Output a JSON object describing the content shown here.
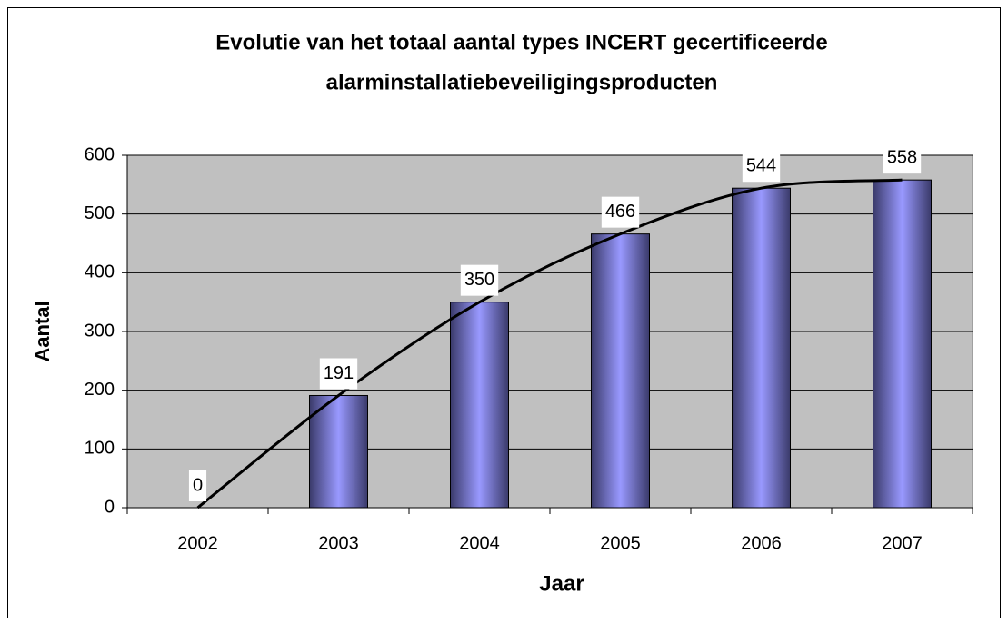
{
  "chart_data": {
    "type": "bar",
    "title": [
      "Evolutie van het totaal aantal types INCERT gecertificeerde",
      "alarminstallatiebeveiligingsproducten"
    ],
    "x_label": "Jaar",
    "y_label": "Aantal",
    "categories": [
      "2002",
      "2003",
      "2004",
      "2005",
      "2006",
      "2007"
    ],
    "values": [
      0,
      191,
      350,
      466,
      544,
      558
    ],
    "color": "#9999ff",
    "trendline": true,
    "ylim": [
      0,
      600
    ],
    "yticks": [
      0,
      100,
      200,
      300,
      400,
      500,
      600
    ],
    "grid": true
  }
}
